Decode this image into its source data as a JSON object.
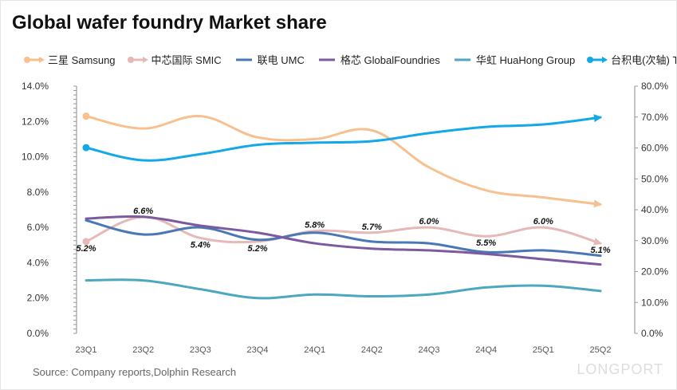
{
  "title": "Global wafer foundry Market share",
  "source": "Source: Company  reports,Dolphin  Research",
  "brand": "LONGPORT",
  "chart_data": {
    "type": "line",
    "title": "Global wafer foundry Market share",
    "categories": [
      "23Q1",
      "23Q2",
      "23Q3",
      "23Q4",
      "24Q1",
      "24Q2",
      "24Q3",
      "24Q4",
      "25Q1",
      "25Q2"
    ],
    "y_left": {
      "min": 0,
      "max": 14,
      "step": 2,
      "ticks": [
        "0.0%",
        "2.0%",
        "4.0%",
        "6.0%",
        "8.0%",
        "10.0%",
        "12.0%",
        "14.0%"
      ]
    },
    "y_right": {
      "min": 0,
      "max": 80,
      "step": 10,
      "ticks": [
        "0.0%",
        "10.0%",
        "20.0%",
        "30.0%",
        "40.0%",
        "50.0%",
        "60.0%",
        "70.0%",
        "80.0%"
      ]
    },
    "legend_position": "top",
    "series": [
      {
        "name": "三星 Samsung",
        "axis": "left",
        "color": "#F7C08E",
        "marker": "arrow",
        "values": [
          12.3,
          11.6,
          12.3,
          11.1,
          11.0,
          11.5,
          9.4,
          8.1,
          7.7,
          7.3
        ]
      },
      {
        "name": "中芯国际 SMIC",
        "axis": "left",
        "color": "#E6B8B8",
        "marker": "arrow",
        "labels": true,
        "values": [
          5.2,
          6.6,
          5.4,
          5.2,
          5.8,
          5.7,
          6.0,
          5.5,
          6.0,
          5.1
        ],
        "data_labels": [
          "5.2%",
          "6.6%",
          "5.4%",
          "5.2%",
          "5.8%",
          "5.7%",
          "6.0%",
          "5.5%",
          "6.0%",
          "5.1%"
        ]
      },
      {
        "name": "联电 UMC",
        "axis": "left",
        "color": "#4A78B5",
        "marker": "none",
        "values": [
          6.4,
          5.6,
          6.0,
          5.3,
          5.7,
          5.2,
          5.1,
          4.6,
          4.7,
          4.4
        ]
      },
      {
        "name": "格芯 GlobalFoundries",
        "axis": "left",
        "color": "#7B5AA0",
        "marker": "none",
        "values": [
          6.5,
          6.6,
          6.1,
          5.7,
          5.1,
          4.8,
          4.7,
          4.5,
          4.2,
          3.9
        ]
      },
      {
        "name": "华虹 HuaHong Group",
        "axis": "left",
        "color": "#4BA8C0",
        "marker": "none",
        "values": [
          3.0,
          3.0,
          2.5,
          2.0,
          2.2,
          2.1,
          2.2,
          2.6,
          2.7,
          2.4
        ]
      },
      {
        "name": "台积电(次轴)   TSMC",
        "axis": "right",
        "color": "#13A8E8",
        "marker": "arrow",
        "values": [
          60.1,
          56.0,
          58.0,
          61.0,
          61.7,
          62.2,
          64.8,
          66.8,
          67.6,
          69.9
        ]
      }
    ]
  }
}
